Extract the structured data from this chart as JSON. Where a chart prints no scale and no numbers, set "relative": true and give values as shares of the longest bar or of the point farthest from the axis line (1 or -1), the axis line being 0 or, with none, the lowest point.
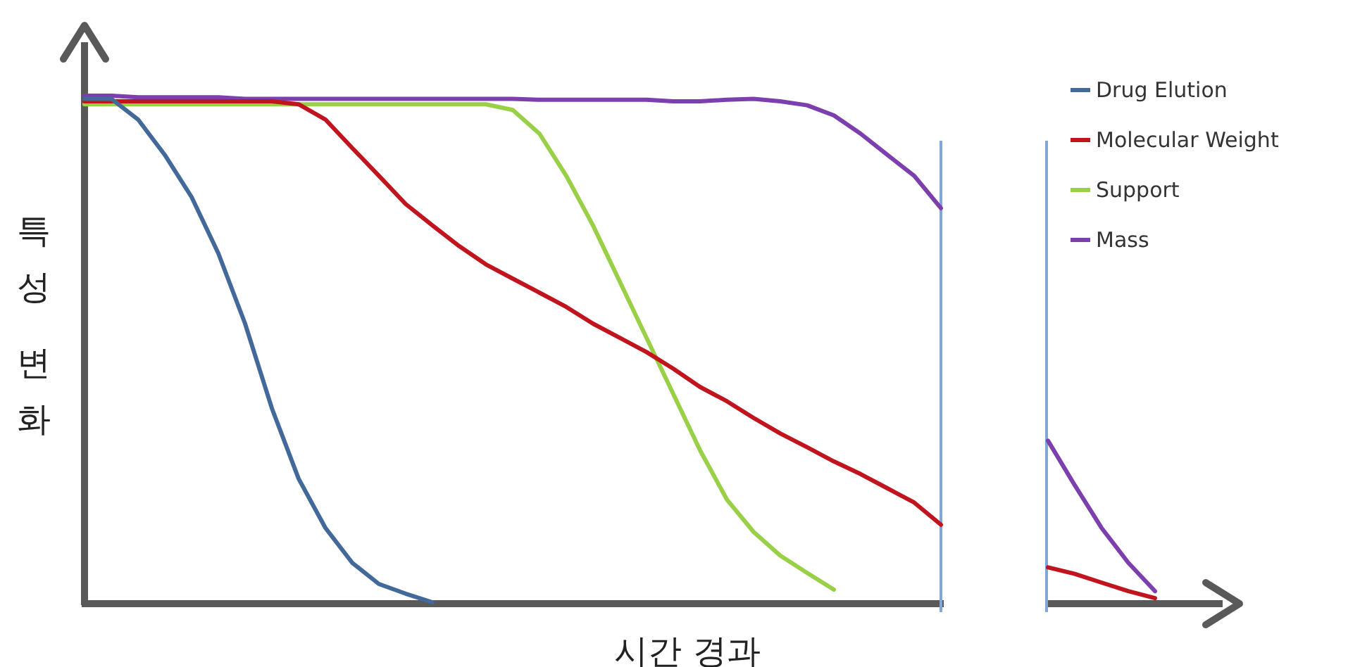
{
  "chart_data": {
    "type": "line",
    "relative": true,
    "xlabel": "시간 경과",
    "ylabel": "특성 변화",
    "legend": "top right",
    "categories": [
      null,
      null,
      null,
      null,
      null,
      null,
      null,
      null,
      null,
      null,
      null,
      null,
      null,
      null,
      null,
      null,
      null,
      null,
      null,
      null,
      null,
      null,
      null,
      null,
      null,
      null,
      null,
      null,
      null,
      null,
      null,
      null,
      null,
      null,
      null,
      null,
      null,
      null,
      null,
      null,
      null
    ],
    "series": [
      {
        "name": "Drug Elution",
        "color": "#43699b",
        "values": [
          0.994,
          0.994,
          0.953,
          0.883,
          0.8,
          0.689,
          0.55,
          0.383,
          0.244,
          0.147,
          0.078,
          0.036,
          0.017,
          0,
          null,
          null,
          null,
          null,
          null,
          null,
          null,
          null,
          null,
          null,
          null,
          null,
          null,
          null,
          null,
          null,
          null,
          null,
          null,
          null,
          null,
          null,
          null,
          null,
          null,
          null,
          null
        ]
      },
      {
        "name": "Molecular Weight",
        "color": "#c0151e",
        "values": [
          0.989,
          0.989,
          0.989,
          0.989,
          0.989,
          0.989,
          0.989,
          0.989,
          0.983,
          0.953,
          0.897,
          0.842,
          0.786,
          0.744,
          0.703,
          0.667,
          0.639,
          0.611,
          0.583,
          0.55,
          0.522,
          0.494,
          0.461,
          0.425,
          0.397,
          0.364,
          0.333,
          0.306,
          0.278,
          0.253,
          0.225,
          0.197,
          0.153,
          null,
          null,
          null,
          0.069,
          0.056,
          0.039,
          0.022,
          0.008
        ]
      },
      {
        "name": "Support",
        "color": "#9ad048",
        "values": [
          0.983,
          0.983,
          0.983,
          0.983,
          0.983,
          0.983,
          0.983,
          0.983,
          0.983,
          0.983,
          0.983,
          0.983,
          0.983,
          0.983,
          0.983,
          0.983,
          0.972,
          0.925,
          0.842,
          0.744,
          0.633,
          0.522,
          0.411,
          0.3,
          0.203,
          0.139,
          0.092,
          0.058,
          0.025,
          null,
          null,
          null,
          null,
          null,
          null,
          null,
          null,
          null,
          null,
          null,
          null
        ]
      },
      {
        "name": "Mass",
        "color": "#7d3fae",
        "values": [
          1,
          1,
          0.997,
          0.997,
          0.997,
          0.997,
          0.994,
          0.994,
          0.994,
          0.994,
          0.994,
          0.994,
          0.994,
          0.994,
          0.994,
          0.994,
          0.994,
          0.992,
          0.992,
          0.992,
          0.992,
          0.992,
          0.989,
          0.989,
          0.992,
          0.994,
          0.989,
          0.981,
          0.961,
          0.925,
          0.883,
          0.842,
          0.778,
          null,
          null,
          null,
          0.319,
          0.231,
          0.147,
          0.078,
          0.022
        ]
      }
    ]
  }
}
